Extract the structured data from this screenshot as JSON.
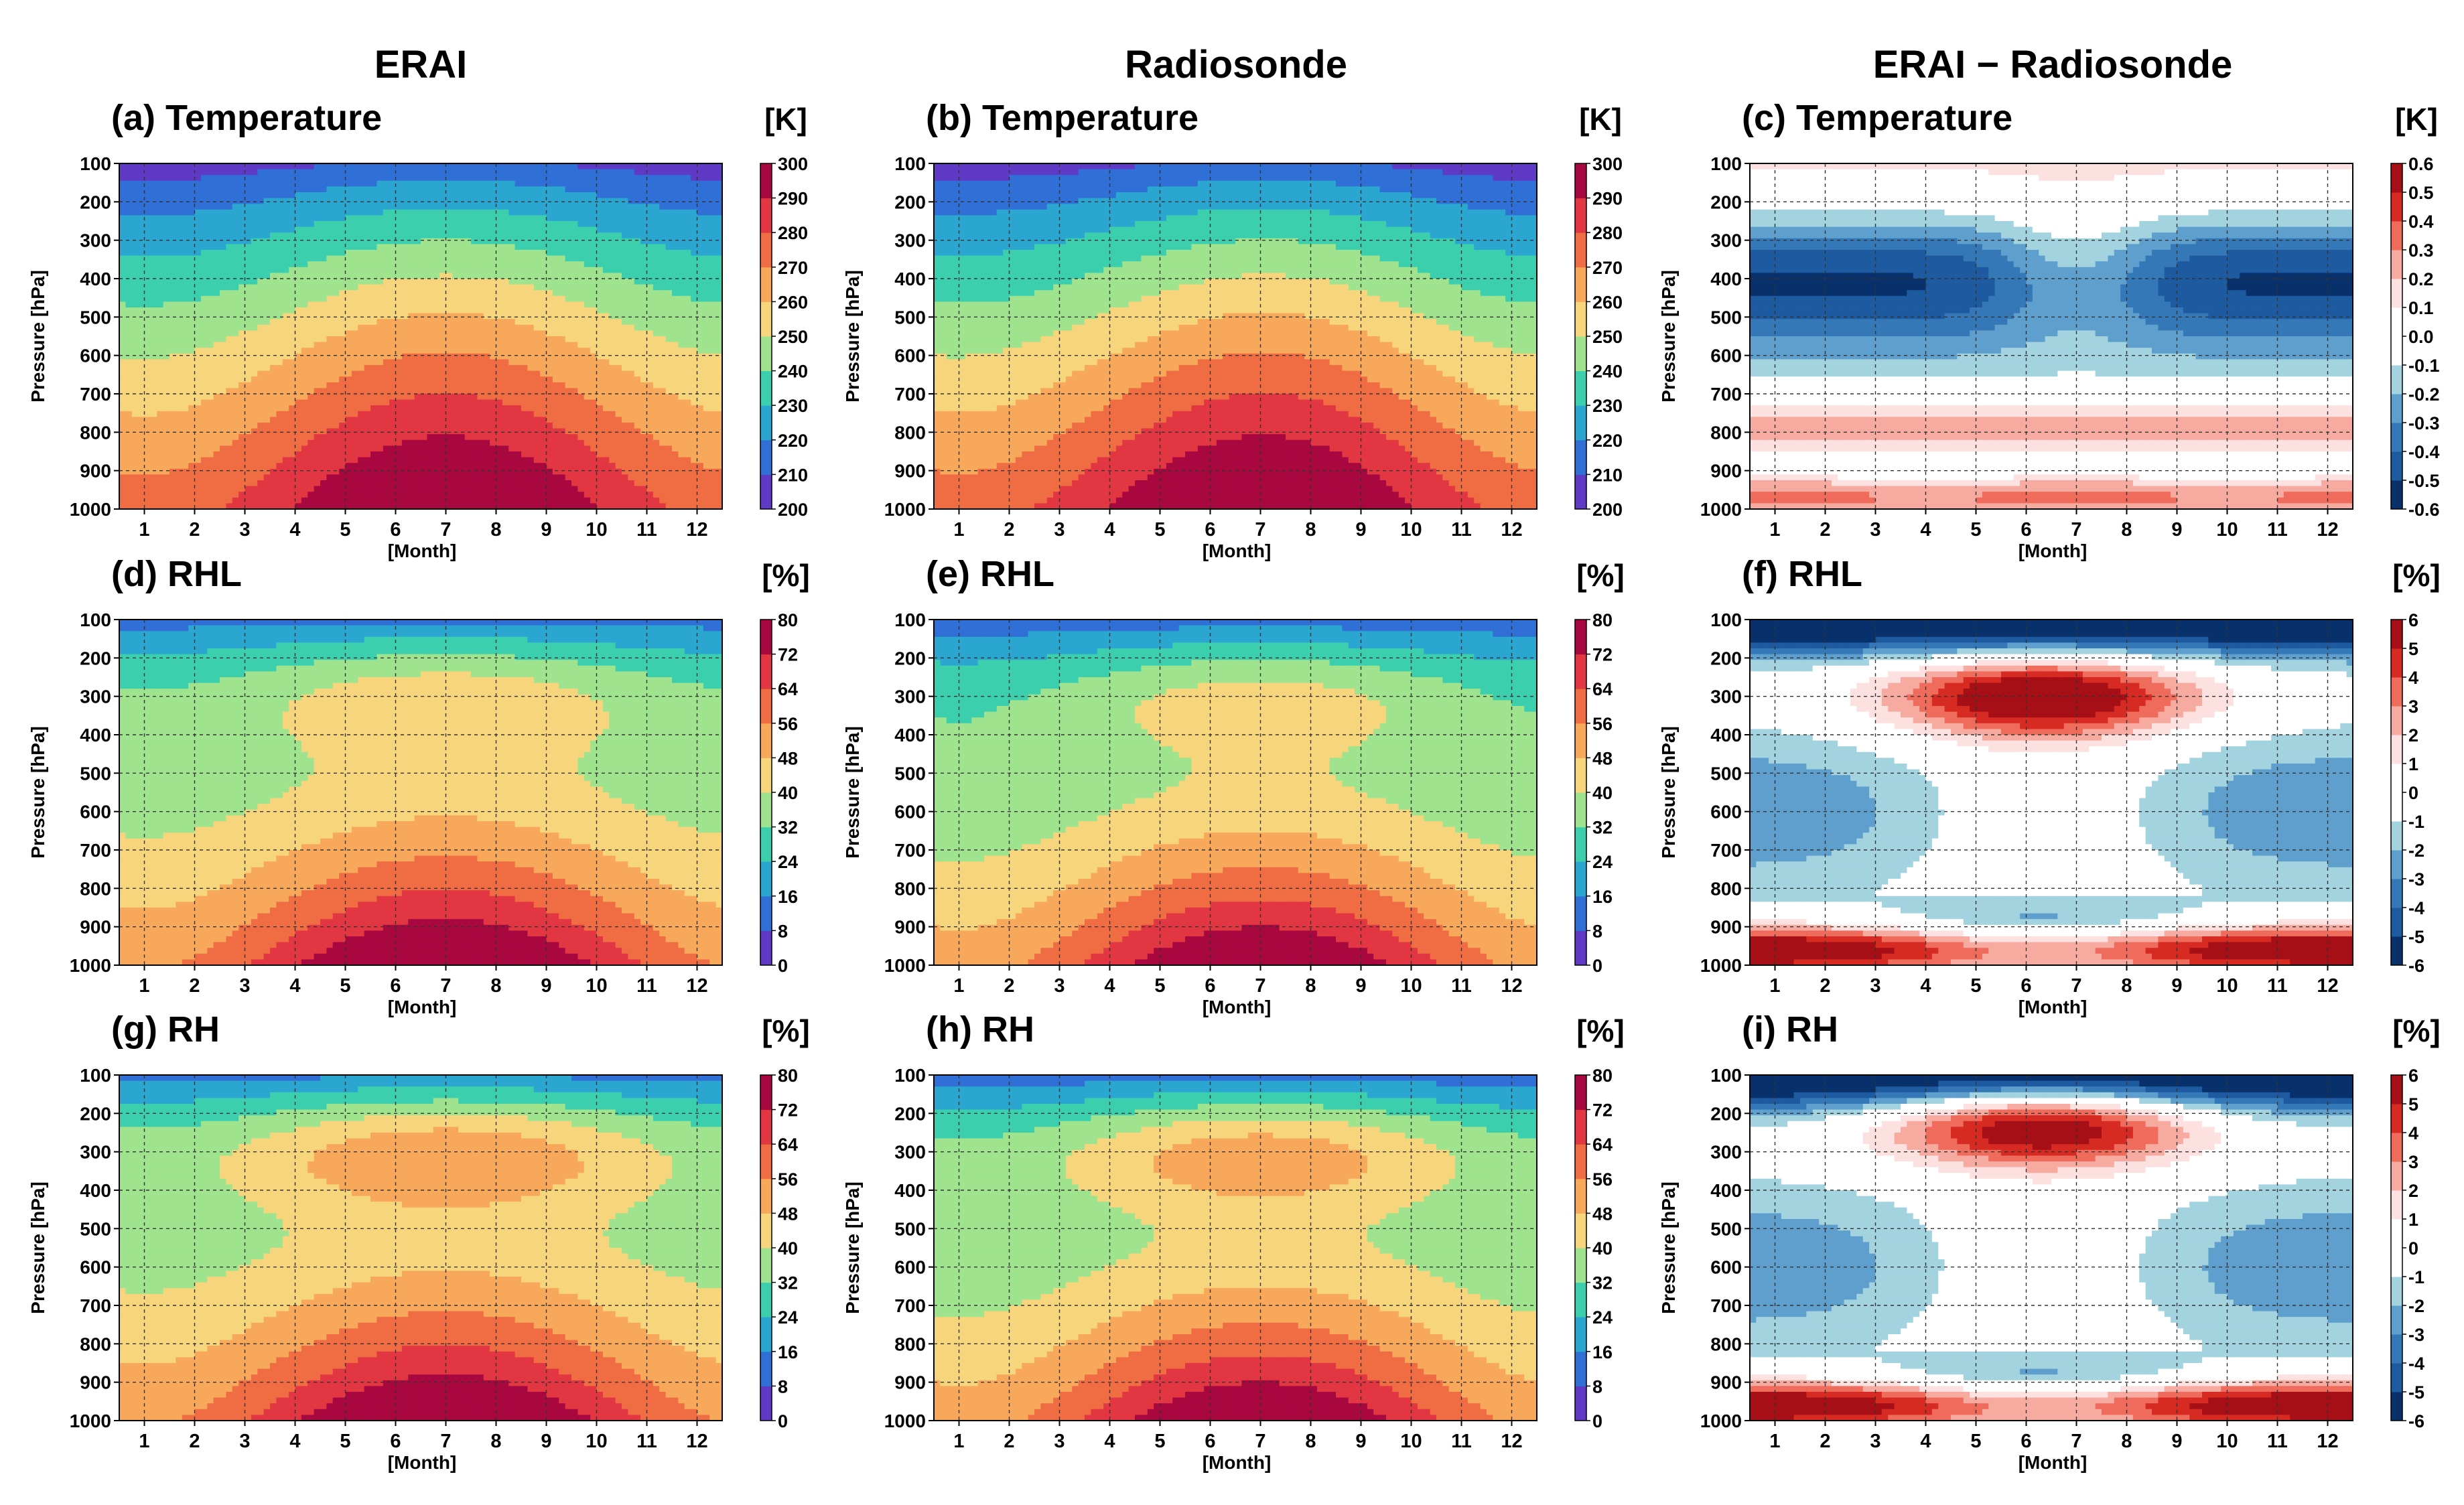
{
  "column_titles": [
    "ERAI",
    "Radiosonde",
    "ERAI − Radiosonde"
  ],
  "chart_data": [
    {
      "id": "a",
      "type": "heatmap",
      "title": "(a) Temperature",
      "variable": "temp",
      "mode": "erai",
      "unit": "[K]",
      "xlabel": "[Month]",
      "ylabel": "Pressure [hPa]",
      "x": [
        "1",
        "2",
        "3",
        "4",
        "5",
        "6",
        "7",
        "8",
        "9",
        "10",
        "11",
        "12"
      ],
      "y": [
        "100",
        "200",
        "300",
        "400",
        "500",
        "600",
        "700",
        "800",
        "900",
        "1000"
      ],
      "levels": [
        "200",
        "210",
        "220",
        "230",
        "240",
        "250",
        "260",
        "270",
        "280",
        "290",
        "300"
      ],
      "colormap": "spectral",
      "clim": [
        200,
        300
      ]
    },
    {
      "id": "b",
      "type": "heatmap",
      "title": "(b) Temperature",
      "variable": "temp",
      "mode": "rs",
      "unit": "[K]",
      "xlabel": "[Month]",
      "ylabel": "Pressure [hPa]",
      "x": [
        "1",
        "2",
        "3",
        "4",
        "5",
        "6",
        "7",
        "8",
        "9",
        "10",
        "11",
        "12"
      ],
      "y": [
        "100",
        "200",
        "300",
        "400",
        "500",
        "600",
        "700",
        "800",
        "900",
        "1000"
      ],
      "levels": [
        "200",
        "210",
        "220",
        "230",
        "240",
        "250",
        "260",
        "270",
        "280",
        "290",
        "300"
      ],
      "colormap": "spectral",
      "clim": [
        200,
        300
      ]
    },
    {
      "id": "c",
      "type": "heatmap",
      "title": "(c) Temperature",
      "variable": "temp",
      "mode": "diff",
      "unit": "[K]",
      "xlabel": "[Month]",
      "ylabel": "Pressure [hPa]",
      "x": [
        "1",
        "2",
        "3",
        "4",
        "5",
        "6",
        "7",
        "8",
        "9",
        "10",
        "11",
        "12"
      ],
      "y": [
        "100",
        "200",
        "300",
        "400",
        "500",
        "600",
        "700",
        "800",
        "900",
        "1000"
      ],
      "levels": [
        "-0.6",
        "-0.5",
        "-0.4",
        "-0.3",
        "-0.2",
        "-0.1",
        "0.0",
        "0.1",
        "0.2",
        "0.3",
        "0.4",
        "0.5",
        "0.6"
      ],
      "colormap": "diverging",
      "clim": [
        -0.6,
        0.6
      ]
    },
    {
      "id": "d",
      "type": "heatmap",
      "title": "(d) RHL",
      "variable": "rhl",
      "mode": "erai",
      "unit": "[%]",
      "xlabel": "[Month]",
      "ylabel": "Pressure [hPa]",
      "x": [
        "1",
        "2",
        "3",
        "4",
        "5",
        "6",
        "7",
        "8",
        "9",
        "10",
        "11",
        "12"
      ],
      "y": [
        "100",
        "200",
        "300",
        "400",
        "500",
        "600",
        "700",
        "800",
        "900",
        "1000"
      ],
      "levels": [
        "0",
        "8",
        "16",
        "24",
        "32",
        "40",
        "48",
        "56",
        "64",
        "72",
        "80"
      ],
      "colormap": "spectral",
      "clim": [
        0,
        80
      ]
    },
    {
      "id": "e",
      "type": "heatmap",
      "title": "(e) RHL",
      "variable": "rhl",
      "mode": "rs",
      "unit": "[%]",
      "xlabel": "[Month]",
      "ylabel": "Pressure [hPa]",
      "x": [
        "1",
        "2",
        "3",
        "4",
        "5",
        "6",
        "7",
        "8",
        "9",
        "10",
        "11",
        "12"
      ],
      "y": [
        "100",
        "200",
        "300",
        "400",
        "500",
        "600",
        "700",
        "800",
        "900",
        "1000"
      ],
      "levels": [
        "0",
        "8",
        "16",
        "24",
        "32",
        "40",
        "48",
        "56",
        "64",
        "72",
        "80"
      ],
      "colormap": "spectral",
      "clim": [
        0,
        80
      ]
    },
    {
      "id": "f",
      "type": "heatmap",
      "title": "(f) RHL",
      "variable": "rhl",
      "mode": "diff",
      "unit": "[%]",
      "xlabel": "[Month]",
      "ylabel": "Pressure [hPa]",
      "x": [
        "1",
        "2",
        "3",
        "4",
        "5",
        "6",
        "7",
        "8",
        "9",
        "10",
        "11",
        "12"
      ],
      "y": [
        "100",
        "200",
        "300",
        "400",
        "500",
        "600",
        "700",
        "800",
        "900",
        "1000"
      ],
      "levels": [
        "-6",
        "-5",
        "-4",
        "-3",
        "-2",
        "-1",
        "0",
        "1",
        "2",
        "3",
        "4",
        "5",
        "6"
      ],
      "colormap": "diverging",
      "clim": [
        -6,
        6
      ]
    },
    {
      "id": "g",
      "type": "heatmap",
      "title": "(g) RH",
      "variable": "rh",
      "mode": "erai",
      "unit": "[%]",
      "xlabel": "[Month]",
      "ylabel": "Pressure [hPa]",
      "x": [
        "1",
        "2",
        "3",
        "4",
        "5",
        "6",
        "7",
        "8",
        "9",
        "10",
        "11",
        "12"
      ],
      "y": [
        "100",
        "200",
        "300",
        "400",
        "500",
        "600",
        "700",
        "800",
        "900",
        "1000"
      ],
      "levels": [
        "0",
        "8",
        "16",
        "24",
        "32",
        "40",
        "48",
        "56",
        "64",
        "72",
        "80"
      ],
      "colormap": "spectral",
      "clim": [
        0,
        80
      ]
    },
    {
      "id": "h",
      "type": "heatmap",
      "title": "(h) RH",
      "variable": "rh",
      "mode": "rs",
      "unit": "[%]",
      "xlabel": "[Month]",
      "ylabel": "Pressure [hPa]",
      "x": [
        "1",
        "2",
        "3",
        "4",
        "5",
        "6",
        "7",
        "8",
        "9",
        "10",
        "11",
        "12"
      ],
      "y": [
        "100",
        "200",
        "300",
        "400",
        "500",
        "600",
        "700",
        "800",
        "900",
        "1000"
      ],
      "levels": [
        "0",
        "8",
        "16",
        "24",
        "32",
        "40",
        "48",
        "56",
        "64",
        "72",
        "80"
      ],
      "colormap": "spectral",
      "clim": [
        0,
        80
      ]
    },
    {
      "id": "i",
      "type": "heatmap",
      "title": "(i) RH",
      "variable": "rh",
      "mode": "diff",
      "unit": "[%]",
      "xlabel": "[Month]",
      "ylabel": "Pressure [hPa]",
      "x": [
        "1",
        "2",
        "3",
        "4",
        "5",
        "6",
        "7",
        "8",
        "9",
        "10",
        "11",
        "12"
      ],
      "y": [
        "100",
        "200",
        "300",
        "400",
        "500",
        "600",
        "700",
        "800",
        "900",
        "1000"
      ],
      "levels": [
        "-6",
        "-5",
        "-4",
        "-3",
        "-2",
        "-1",
        "0",
        "1",
        "2",
        "3",
        "4",
        "5",
        "6"
      ],
      "colormap": "diverging",
      "clim": [
        -6,
        6
      ]
    }
  ],
  "colors": {
    "spectral": [
      "#5e3ac7",
      "#2f6fd6",
      "#2aa6d0",
      "#3ccfae",
      "#9fe38e",
      "#f7d57c",
      "#f7a85a",
      "#f06d44",
      "#e23642",
      "#a8083f"
    ],
    "diverging": [
      "#08306b",
      "#1d5aa0",
      "#3578b8",
      "#5f9fcd",
      "#a4d3e0",
      "#ffffff",
      "#ffffff",
      "#fde0e0",
      "#f7aaa0",
      "#ef6b5b",
      "#d62a23",
      "#a50f15"
    ]
  }
}
